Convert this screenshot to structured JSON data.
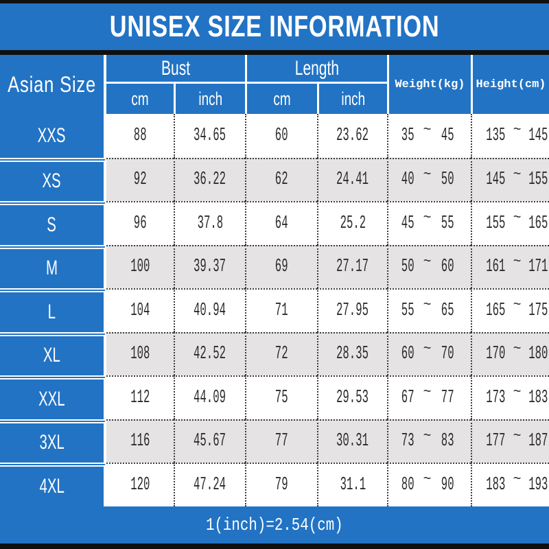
{
  "title": "UNISEX SIZE INFORMATION",
  "footer_note": "1(inch)=2.54(cm)",
  "colors": {
    "blue": "#2273c4",
    "row_alt": "#e5e3e4",
    "text_dark": "#2b2b2b",
    "bar_black": "#101010",
    "dotted": "#3c3c3c",
    "white": "#ffffff"
  },
  "table": {
    "size_header": "Asian Size",
    "groups": {
      "bust": "Bust",
      "length": "Length"
    },
    "subheaders": {
      "bust_cm": "cm",
      "bust_inch": "inch",
      "length_cm": "cm",
      "length_inch": "inch"
    },
    "weight_header": "Weight(kg)",
    "height_header": "Height(cm)",
    "tilde": "~",
    "rows": [
      {
        "size": "XXS",
        "bust_cm": "88",
        "bust_inch": "34.65",
        "length_cm": "60",
        "length_inch": "23.62",
        "weight_min": "35",
        "weight_max": "45",
        "height_min": "135",
        "height_max": "145"
      },
      {
        "size": "XS",
        "bust_cm": "92",
        "bust_inch": "36.22",
        "length_cm": "62",
        "length_inch": "24.41",
        "weight_min": "40",
        "weight_max": "50",
        "height_min": "145",
        "height_max": "155"
      },
      {
        "size": "S",
        "bust_cm": "96",
        "bust_inch": "37.8",
        "length_cm": "64",
        "length_inch": "25.2",
        "weight_min": "45",
        "weight_max": "55",
        "height_min": "155",
        "height_max": "165"
      },
      {
        "size": "M",
        "bust_cm": "100",
        "bust_inch": "39.37",
        "length_cm": "69",
        "length_inch": "27.17",
        "weight_min": "50",
        "weight_max": "60",
        "height_min": "161",
        "height_max": "171"
      },
      {
        "size": "L",
        "bust_cm": "104",
        "bust_inch": "40.94",
        "length_cm": "71",
        "length_inch": "27.95",
        "weight_min": "55",
        "weight_max": "65",
        "height_min": "165",
        "height_max": "175"
      },
      {
        "size": "XL",
        "bust_cm": "108",
        "bust_inch": "42.52",
        "length_cm": "72",
        "length_inch": "28.35",
        "weight_min": "60",
        "weight_max": "70",
        "height_min": "170",
        "height_max": "180"
      },
      {
        "size": "XXL",
        "bust_cm": "112",
        "bust_inch": "44.09",
        "length_cm": "75",
        "length_inch": "29.53",
        "weight_min": "67",
        "weight_max": "77",
        "height_min": "173",
        "height_max": "183"
      },
      {
        "size": "3XL",
        "bust_cm": "116",
        "bust_inch": "45.67",
        "length_cm": "77",
        "length_inch": "30.31",
        "weight_min": "73",
        "weight_max": "83",
        "height_min": "177",
        "height_max": "187"
      },
      {
        "size": "4XL",
        "bust_cm": "120",
        "bust_inch": "47.24",
        "length_cm": "79",
        "length_inch": "31.1",
        "weight_min": "80",
        "weight_max": "90",
        "height_min": "183",
        "height_max": "193"
      }
    ]
  },
  "chart_data": {
    "type": "table",
    "title": "UNISEX SIZE INFORMATION",
    "columns": [
      "Asian Size",
      "Bust (cm)",
      "Bust (inch)",
      "Length (cm)",
      "Length (inch)",
      "Weight (kg)",
      "Height (cm)"
    ],
    "rows": [
      [
        "XXS",
        "88",
        "34.65",
        "60",
        "23.62",
        "35~45",
        "135~145"
      ],
      [
        "XS",
        "92",
        "36.22",
        "62",
        "24.41",
        "40~50",
        "145~155"
      ],
      [
        "S",
        "96",
        "37.8",
        "64",
        "25.2",
        "45~55",
        "155~165"
      ],
      [
        "M",
        "100",
        "39.37",
        "69",
        "27.17",
        "50~60",
        "161~171"
      ],
      [
        "L",
        "104",
        "40.94",
        "71",
        "27.95",
        "55~65",
        "165~175"
      ],
      [
        "XL",
        "108",
        "42.52",
        "72",
        "28.35",
        "60~70",
        "170~180"
      ],
      [
        "XXL",
        "112",
        "44.09",
        "75",
        "29.53",
        "67~77",
        "173~183"
      ],
      [
        "3XL",
        "116",
        "45.67",
        "77",
        "30.31",
        "73~83",
        "177~187"
      ],
      [
        "4XL",
        "120",
        "47.24",
        "79",
        "31.1",
        "80~90",
        "183~193"
      ]
    ],
    "footnote": "1(inch)=2.54(cm)"
  }
}
